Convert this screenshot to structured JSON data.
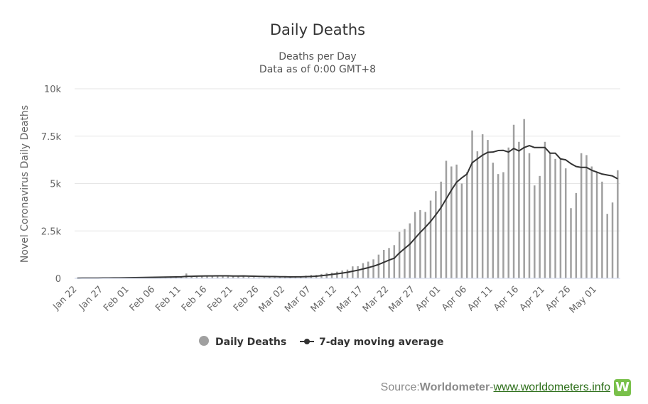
{
  "chart_data": {
    "type": "bar",
    "title": "Daily Deaths",
    "subtitle_lines": [
      "Deaths per Day",
      "Data as of 0:00 GMT+8"
    ],
    "ylabel": "Novel Coronavirus Daily Deaths",
    "ylim": [
      0,
      10000
    ],
    "y_ticks": [
      0,
      2500,
      5000,
      7500,
      10000
    ],
    "y_tick_labels": [
      "0",
      "2.5k",
      "5k",
      "7.5k",
      "10k"
    ],
    "x_tick_labels": [
      "Jan 22",
      "Jan 27",
      "Feb 01",
      "Feb 06",
      "Feb 11",
      "Feb 16",
      "Feb 21",
      "Feb 26",
      "Mar 02",
      "Mar 07",
      "Mar 12",
      "Mar 17",
      "Mar 22",
      "Mar 27",
      "Apr 01",
      "Apr 06",
      "Apr 11",
      "Apr 16",
      "Apr 21",
      "Apr 26",
      "May 01"
    ],
    "categories": [
      "Jan 22",
      "Jan 23",
      "Jan 24",
      "Jan 25",
      "Jan 26",
      "Jan 27",
      "Jan 28",
      "Jan 29",
      "Jan 30",
      "Jan 31",
      "Feb 01",
      "Feb 02",
      "Feb 03",
      "Feb 04",
      "Feb 05",
      "Feb 06",
      "Feb 07",
      "Feb 08",
      "Feb 09",
      "Feb 10",
      "Feb 11",
      "Feb 12",
      "Feb 13",
      "Feb 14",
      "Feb 15",
      "Feb 16",
      "Feb 17",
      "Feb 18",
      "Feb 19",
      "Feb 20",
      "Feb 21",
      "Feb 22",
      "Feb 23",
      "Feb 24",
      "Feb 25",
      "Feb 26",
      "Feb 27",
      "Feb 28",
      "Feb 29",
      "Mar 01",
      "Mar 02",
      "Mar 03",
      "Mar 04",
      "Mar 05",
      "Mar 06",
      "Mar 07",
      "Mar 08",
      "Mar 09",
      "Mar 10",
      "Mar 11",
      "Mar 12",
      "Mar 13",
      "Mar 14",
      "Mar 15",
      "Mar 16",
      "Mar 17",
      "Mar 18",
      "Mar 19",
      "Mar 20",
      "Mar 21",
      "Mar 22",
      "Mar 23",
      "Mar 24",
      "Mar 25",
      "Mar 26",
      "Mar 27",
      "Mar 28",
      "Mar 29",
      "Mar 30",
      "Mar 31",
      "Apr 01",
      "Apr 02",
      "Apr 03",
      "Apr 04",
      "Apr 05",
      "Apr 06",
      "Apr 07",
      "Apr 08",
      "Apr 09",
      "Apr 10",
      "Apr 11",
      "Apr 12",
      "Apr 13",
      "Apr 14",
      "Apr 15",
      "Apr 16",
      "Apr 17",
      "Apr 18",
      "Apr 19",
      "Apr 20",
      "Apr 21",
      "Apr 22",
      "Apr 23",
      "Apr 24",
      "Apr 25",
      "Apr 26",
      "Apr 27",
      "Apr 28",
      "Apr 29",
      "Apr 30",
      "May 01",
      "May 02",
      "May 03",
      "May 04",
      "May 05"
    ],
    "series": [
      {
        "name": "Daily Deaths",
        "type": "bar",
        "color": "#a0a0a0",
        "values": [
          8,
          16,
          16,
          15,
          24,
          26,
          26,
          38,
          43,
          46,
          45,
          57,
          64,
          66,
          73,
          73,
          86,
          89,
          97,
          108,
          97,
          254,
          121,
          143,
          142,
          105,
          98,
          136,
          114,
          118,
          109,
          97,
          150,
          71,
          64,
          37,
          58,
          64,
          66,
          53,
          66,
          73,
          93,
          95,
          140,
          180,
          179,
          230,
          280,
          300,
          350,
          410,
          460,
          630,
          640,
          800,
          880,
          1000,
          1250,
          1500,
          1600,
          1750,
          2450,
          2600,
          2900,
          3500,
          3600,
          3500,
          4100,
          4600,
          5100,
          6200,
          5900,
          6000,
          5000,
          5600,
          7800,
          6700,
          7600,
          7300,
          6100,
          5500,
          5600,
          6900,
          8100,
          7200,
          8400,
          6600,
          4900,
          5400,
          7200,
          6600,
          6300,
          6300,
          5800,
          3700,
          4500,
          6600,
          6500,
          5900,
          5600,
          5100,
          3400,
          4000,
          5700
        ]
      },
      {
        "name": "7-day moving average",
        "type": "line",
        "color": "#333333",
        "values": [
          8,
          12,
          13,
          14,
          16,
          17,
          19,
          22,
          25,
          29,
          32,
          36,
          41,
          45,
          50,
          54,
          60,
          64,
          69,
          75,
          78,
          102,
          108,
          116,
          124,
          125,
          126,
          131,
          129,
          129,
          123,
          123,
          126,
          118,
          114,
          104,
          99,
          94,
          96,
          86,
          84,
          77,
          78,
          79,
          88,
          97,
          113,
          140,
          170,
          205,
          238,
          275,
          318,
          376,
          429,
          495,
          563,
          640,
          730,
          845,
          960,
          1060,
          1340,
          1575,
          1800,
          2110,
          2420,
          2700,
          3000,
          3350,
          3730,
          4190,
          4650,
          5070,
          5300,
          5500,
          6100,
          6300,
          6500,
          6650,
          6660,
          6740,
          6750,
          6660,
          6850,
          6720,
          6900,
          7000,
          6900,
          6900,
          6900,
          6600,
          6600,
          6300,
          6250,
          6050,
          5900,
          5850,
          5850,
          5700,
          5600,
          5500,
          5450,
          5400,
          5250
        ]
      }
    ],
    "legend": {
      "position": "bottom-center",
      "items": [
        "Daily Deaths",
        "7-day moving average"
      ]
    },
    "grid": {
      "y": true,
      "x": false
    },
    "colors": {
      "bars": "#a0a0a0",
      "line": "#333333",
      "grid": "#e6e6e6"
    }
  },
  "credits": {
    "prefix": "Source: ",
    "source": "Worldometer",
    "separator": " - ",
    "link": "www.worldometers.info",
    "logo_letter": "W"
  }
}
